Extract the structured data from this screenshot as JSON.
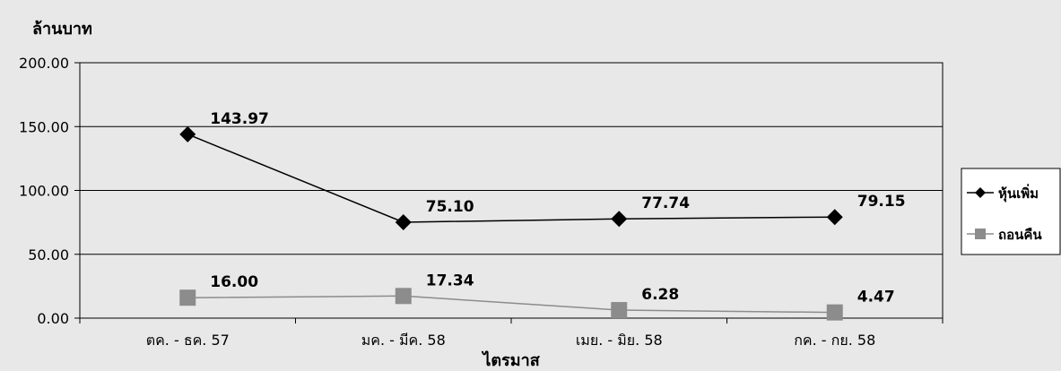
{
  "chart_data": {
    "type": "line",
    "ylabel": "ล้านบาท",
    "xlabel": "ไตรมาส",
    "categories": [
      "ตค. - ธค. 57",
      "มค. -  มีค. 58",
      "เมย. - มิย. 58",
      "กค. - กย. 58"
    ],
    "yticks": [
      "0.00",
      "50.00",
      "100.00",
      "150.00",
      "200.00"
    ],
    "ylim": [
      0,
      200
    ],
    "grid": true,
    "legend_position": "right",
    "series": [
      {
        "name": "หุ้นเพิ่ม",
        "values": [
          143.97,
          75.1,
          77.74,
          79.15
        ],
        "labels": [
          "143.97",
          "75.10",
          "77.74",
          "79.15"
        ],
        "color": "#000000",
        "marker": "diamond"
      },
      {
        "name": "ถอนคืน",
        "values": [
          16.0,
          17.34,
          6.28,
          4.47
        ],
        "labels": [
          "16.00",
          "17.34",
          "6.28",
          "4.47"
        ],
        "color": "#8c8c8c",
        "marker": "square"
      }
    ]
  }
}
